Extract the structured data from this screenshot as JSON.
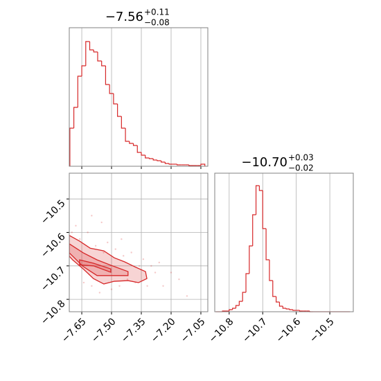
{
  "chart_data": [
    {
      "type": "histogram",
      "title": "−7.56",
      "title_sup": "+0.11",
      "title_sub": "−0.08",
      "color": "#d62728",
      "grid": true,
      "bins": [
        -7.71,
        -7.69,
        -7.67,
        -7.65,
        -7.63,
        -7.61,
        -7.59,
        -7.57,
        -7.55,
        -7.53,
        -7.51,
        -7.49,
        -7.47,
        -7.45,
        -7.43,
        -7.41,
        -7.39,
        -7.37,
        -7.35,
        -7.33,
        -7.31,
        -7.29,
        -7.27,
        -7.25,
        -7.23,
        -7.21,
        -7.19,
        -7.17,
        -7.15,
        -7.13,
        -7.11,
        -7.09,
        -7.07,
        -7.05,
        -7.03
      ],
      "values": [
        55,
        85,
        130,
        145,
        180,
        168,
        165,
        152,
        145,
        118,
        105,
        90,
        72,
        55,
        36,
        33,
        30,
        20,
        16,
        12,
        11,
        9,
        8,
        6,
        4,
        3,
        3,
        2,
        2,
        2,
        1,
        1,
        1,
        3
      ],
      "xlim": [
        -7.713,
        -7.015
      ],
      "ylim": [
        0,
        200
      ],
      "xticks": [
        -7.65,
        -7.5,
        -7.35,
        -7.2,
        -7.05
      ]
    },
    {
      "type": "scatter",
      "color": "#d62728",
      "grid": true,
      "x": [
        -7.7,
        -7.68,
        -7.66,
        -7.64,
        -7.62,
        -7.6,
        -7.58,
        -7.56,
        -7.54,
        -7.52,
        -7.5,
        -7.48,
        -7.46,
        -7.44,
        -7.42,
        -7.4,
        -7.38,
        -7.36,
        -7.34,
        -7.32,
        -7.3,
        -7.28,
        -7.26,
        -7.24,
        -7.2,
        -7.16,
        -7.12,
        -7.6,
        -7.55,
        -7.45
      ],
      "y": [
        -10.6,
        -10.58,
        -10.62,
        -10.75,
        -10.6,
        -10.76,
        -10.64,
        -10.78,
        -10.66,
        -10.63,
        -10.77,
        -10.65,
        -10.76,
        -10.67,
        -10.74,
        -10.66,
        -10.75,
        -10.7,
        -10.68,
        -10.76,
        -10.7,
        -10.72,
        -10.69,
        -10.76,
        -10.72,
        -10.74,
        -10.79,
        -10.55,
        -10.57,
        -10.62
      ],
      "contours": [
        {
          "x": [
            -7.713,
            -7.661,
            -7.608,
            -7.539,
            -7.486,
            -7.434,
            -7.382,
            -7.329,
            -7.322,
            -7.364,
            -7.417,
            -7.486,
            -7.539,
            -7.591,
            -7.643,
            -7.696,
            -7.713
          ],
          "y": [
            -10.609,
            -10.626,
            -10.647,
            -10.655,
            -10.676,
            -10.688,
            -10.703,
            -10.717,
            -10.738,
            -10.75,
            -10.744,
            -10.746,
            -10.754,
            -10.738,
            -10.709,
            -10.682,
            -10.671
          ]
        },
        {
          "x": [
            -7.713,
            -7.643,
            -7.573,
            -7.504,
            -7.417,
            -7.417,
            -7.504,
            -7.573,
            -7.643,
            -7.713
          ],
          "y": [
            -10.634,
            -10.661,
            -10.682,
            -10.698,
            -10.717,
            -10.729,
            -10.729,
            -10.729,
            -10.702,
            -10.661
          ]
        },
        {
          "x": [
            -7.661,
            -7.591,
            -7.504,
            -7.504,
            -7.591,
            -7.661
          ],
          "y": [
            -10.682,
            -10.692,
            -10.709,
            -10.719,
            -10.7,
            -10.697
          ]
        }
      ],
      "xlim": [
        -7.713,
        -7.015
      ],
      "ylim": [
        -10.837,
        -10.423
      ],
      "xticks": [
        {
          "value": -7.65,
          "label": "−7.65"
        },
        {
          "value": -7.5,
          "label": "−7.50"
        },
        {
          "value": -7.35,
          "label": "−7.35"
        },
        {
          "value": -7.2,
          "label": "−7.20"
        },
        {
          "value": -7.05,
          "label": "−7.05"
        }
      ],
      "yticks": [
        {
          "value": -10.5,
          "label": "−10.5"
        },
        {
          "value": -10.6,
          "label": "−10.6"
        },
        {
          "value": -10.7,
          "label": "−10.7"
        },
        {
          "value": -10.8,
          "label": "−10.8"
        }
      ]
    },
    {
      "type": "histogram",
      "title": "−10.70",
      "title_sup": "+0.03",
      "title_sub": "−0.02",
      "color": "#d62728",
      "grid": true,
      "bins": [
        -10.84,
        -10.83,
        -10.82,
        -10.81,
        -10.8,
        -10.79,
        -10.78,
        -10.77,
        -10.76,
        -10.75,
        -10.74,
        -10.73,
        -10.72,
        -10.71,
        -10.7,
        -10.69,
        -10.68,
        -10.67,
        -10.66,
        -10.65,
        -10.64,
        -10.63,
        -10.62,
        -10.61,
        -10.6,
        -10.59,
        -10.58,
        -10.57,
        -10.56,
        -10.55,
        -10.54,
        -10.53,
        -10.52,
        -10.51,
        -10.5,
        -10.49,
        -10.48,
        -10.47,
        -10.46,
        -10.45,
        -10.44
      ],
      "values": [
        0,
        0,
        1,
        1,
        3,
        5,
        9,
        15,
        28,
        55,
        95,
        140,
        182,
        175,
        120,
        75,
        45,
        22,
        14,
        8,
        5,
        4,
        3,
        2,
        2,
        1,
        1,
        1,
        0,
        0,
        0,
        0,
        0,
        0,
        0,
        0,
        0,
        0,
        0,
        0
      ],
      "xlim": [
        -10.843,
        -10.43
      ],
      "ylim": [
        0,
        200
      ],
      "xticks": [
        {
          "value": -10.8,
          "label": "−10.8"
        },
        {
          "value": -10.7,
          "label": "−10.7"
        },
        {
          "value": -10.6,
          "label": "−10.6"
        },
        {
          "value": -10.5,
          "label": "−10.5"
        }
      ]
    }
  ]
}
